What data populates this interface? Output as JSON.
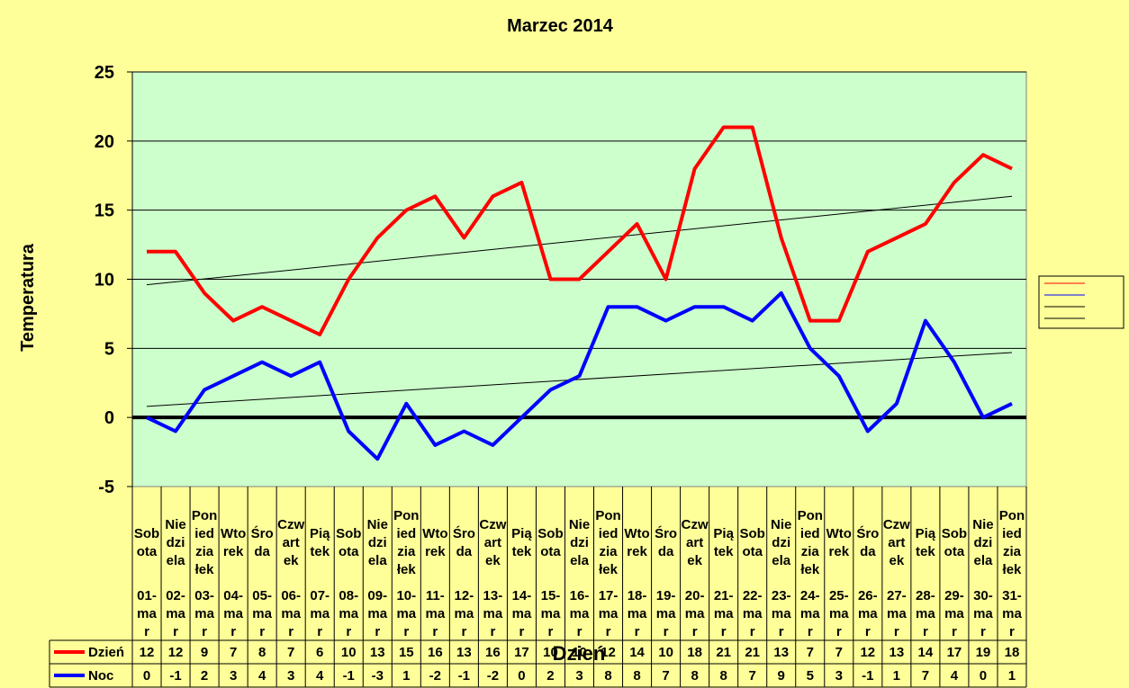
{
  "chart_data": {
    "type": "line",
    "title": "Marzec 2014",
    "xlabel": "Dzień",
    "ylabel": "Temperatura",
    "ylim": [
      -5,
      25
    ],
    "yticks": [
      "25",
      "20",
      "15",
      "10",
      "5",
      "0",
      "-5"
    ],
    "grid": true,
    "legend_position": "right",
    "categories": [
      {
        "weekday": "Sobota",
        "date": "01-mar"
      },
      {
        "weekday": "Niedziela",
        "date": "02-mar"
      },
      {
        "weekday": "Poniedziałek",
        "date": "03-mar"
      },
      {
        "weekday": "Wtorek",
        "date": "04-mar"
      },
      {
        "weekday": "Środa",
        "date": "05-mar"
      },
      {
        "weekday": "Czwartek",
        "date": "06-mar"
      },
      {
        "weekday": "Piątek",
        "date": "07-mar"
      },
      {
        "weekday": "Sobota",
        "date": "08-mar"
      },
      {
        "weekday": "Niedziela",
        "date": "09-mar"
      },
      {
        "weekday": "Poniedziałek",
        "date": "10-mar"
      },
      {
        "weekday": "Wtorek",
        "date": "11-mar"
      },
      {
        "weekday": "Środa",
        "date": "12-mar"
      },
      {
        "weekday": "Czwartek",
        "date": "13-mar"
      },
      {
        "weekday": "Piątek",
        "date": "14-mar"
      },
      {
        "weekday": "Sobota",
        "date": "15-mar"
      },
      {
        "weekday": "Niedziela",
        "date": "16-mar"
      },
      {
        "weekday": "Poniedziałek",
        "date": "17-mar"
      },
      {
        "weekday": "Wtorek",
        "date": "18-mar"
      },
      {
        "weekday": "Środa",
        "date": "19-mar"
      },
      {
        "weekday": "Czwartek",
        "date": "20-mar"
      },
      {
        "weekday": "Piątek",
        "date": "21-mar"
      },
      {
        "weekday": "Sobota",
        "date": "22-mar"
      },
      {
        "weekday": "Niedziela",
        "date": "23-mar"
      },
      {
        "weekday": "Poniedziałek",
        "date": "24-mar"
      },
      {
        "weekday": "Wtorek",
        "date": "25-mar"
      },
      {
        "weekday": "Środa",
        "date": "26-mar"
      },
      {
        "weekday": "Czwartek",
        "date": "27-mar"
      },
      {
        "weekday": "Piątek",
        "date": "28-mar"
      },
      {
        "weekday": "Sobota",
        "date": "29-mar"
      },
      {
        "weekday": "Niedziela",
        "date": "30-mar"
      },
      {
        "weekday": "Poniedziałek",
        "date": "31-mar"
      }
    ],
    "series": [
      {
        "name": "Dzień",
        "color": "#ff0000",
        "values": [
          12,
          12,
          9,
          7,
          8,
          7,
          6,
          10,
          13,
          15,
          16,
          13,
          16,
          17,
          10,
          10,
          12,
          14,
          10,
          18,
          21,
          21,
          13,
          7,
          7,
          12,
          13,
          14,
          17,
          19,
          18
        ]
      },
      {
        "name": "Noc",
        "color": "#0000ff",
        "values": [
          0,
          -1,
          2,
          3,
          4,
          3,
          4,
          -1,
          -3,
          1,
          -2,
          -1,
          -2,
          0,
          2,
          3,
          8,
          8,
          7,
          8,
          8,
          7,
          9,
          5,
          3,
          -1,
          1,
          7,
          4,
          0,
          1
        ]
      }
    ],
    "trendlines": [
      {
        "of": "Dzień",
        "start": 9.6,
        "end": 16.0
      },
      {
        "of": "Noc",
        "start": 0.8,
        "end": 4.7
      }
    ],
    "colors": {
      "background": "#ffff99",
      "plot_area": "#ccffcc",
      "zero_line": "#000000"
    }
  }
}
